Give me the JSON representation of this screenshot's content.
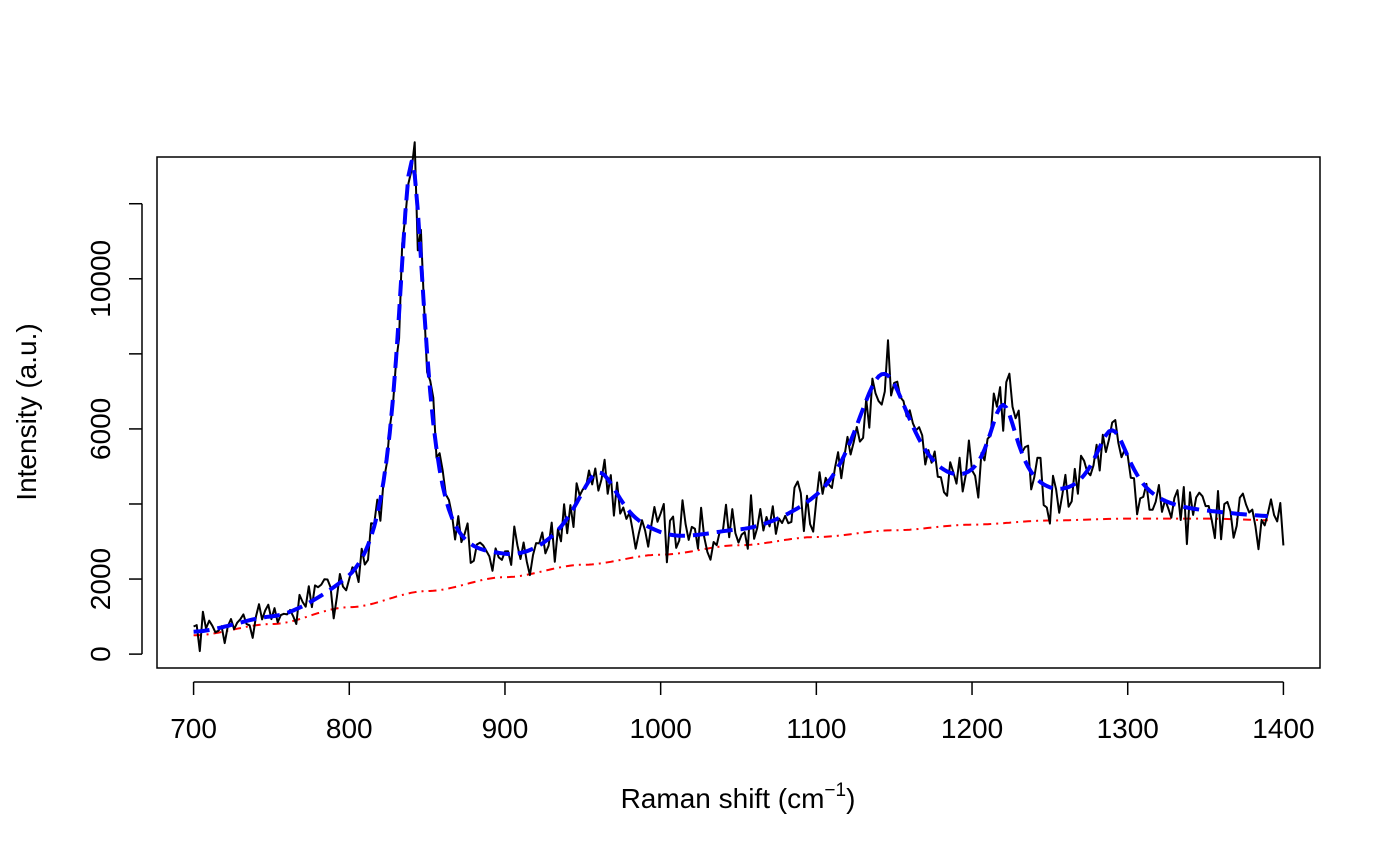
{
  "chart_data": {
    "type": "line",
    "xlabel": "Raman shift (cm",
    "xlabel_sup": "−1",
    "xlabel_close": ")",
    "ylabel": "Intensity (a.u.)",
    "xlim": [
      676.5,
      1423.5
    ],
    "ylim": [
      -370,
      13245
    ],
    "x_ticks": [
      {
        "value": 700,
        "label": "700"
      },
      {
        "value": 800,
        "label": "800"
      },
      {
        "value": 900,
        "label": "900"
      },
      {
        "value": 1000,
        "label": "1000"
      },
      {
        "value": 1100,
        "label": "1100"
      },
      {
        "value": 1200,
        "label": "1200"
      },
      {
        "value": 1300,
        "label": "1300"
      },
      {
        "value": 1400,
        "label": "1400"
      }
    ],
    "y_ticks": [
      {
        "value": 0,
        "label": "0"
      },
      {
        "value": 2000,
        "label": "2000"
      },
      {
        "value": 4000,
        "label": ""
      },
      {
        "value": 6000,
        "label": "6000"
      },
      {
        "value": 8000,
        "label": ""
      },
      {
        "value": 10000,
        "label": "10000"
      },
      {
        "value": 12000,
        "label": ""
      }
    ],
    "grid": false,
    "legend": "none",
    "model": {
      "baseline": [
        [
          700,
          500
        ],
        [
          750,
          800
        ],
        [
          800,
          1250
        ],
        [
          850,
          1680
        ],
        [
          900,
          2050
        ],
        [
          950,
          2380
        ],
        [
          1000,
          2650
        ],
        [
          1050,
          2900
        ],
        [
          1100,
          3120
        ],
        [
          1150,
          3300
        ],
        [
          1200,
          3450
        ],
        [
          1250,
          3560
        ],
        [
          1300,
          3610
        ],
        [
          1350,
          3610
        ],
        [
          1400,
          3560
        ]
      ],
      "peaks": [
        {
          "center": 840,
          "height": 11400,
          "fwhm": 22
        },
        {
          "center": 960,
          "height": 2250,
          "fwhm": 38
        },
        {
          "center": 1143,
          "height": 4050,
          "fwhm": 50
        },
        {
          "center": 1220,
          "height": 2650,
          "fwhm": 25
        },
        {
          "center": 1290,
          "height": 2150,
          "fwhm": 30
        }
      ]
    },
    "series": [
      {
        "role": "observed",
        "color": "#000000",
        "style": "solid",
        "x_start": 700,
        "x_end": 1400,
        "step": 2,
        "noise": 450,
        "seed": 7
      },
      {
        "role": "fitted",
        "color": "#0000ff",
        "style": "dashed",
        "x_start": 700,
        "x_end": 1390,
        "step": 2
      },
      {
        "role": "baseline",
        "color": "#ff0000",
        "style": "dashdot",
        "x_start": 700,
        "x_end": 1390,
        "step": 2
      }
    ]
  }
}
